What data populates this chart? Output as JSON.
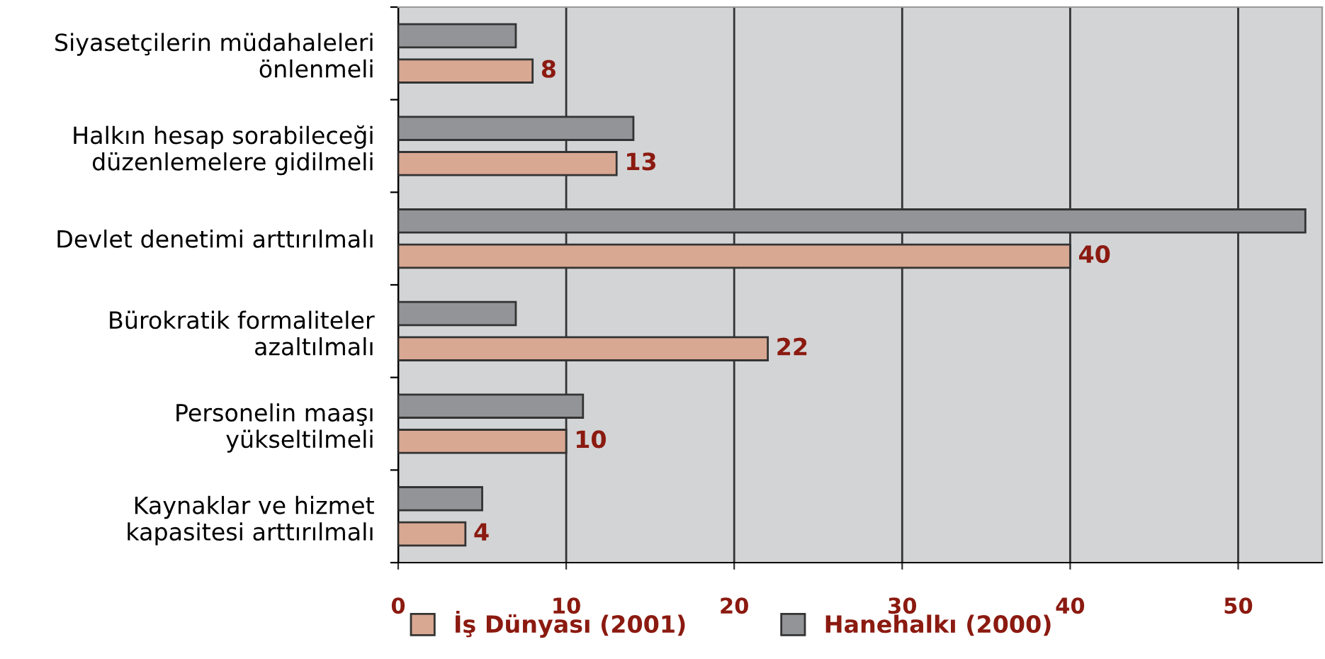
{
  "chart_data": {
    "type": "bar",
    "orientation": "horizontal",
    "categories": [
      "Siyasetçilerin müdahaleleri\nönlenmeli",
      "Halkın hesap sorabileceği\ndüzenlemelere gidilmeli",
      "Devlet denetimi arttırılmalı",
      "Bürokratik formaliteler\nazaltılmalı",
      "Personelin maaşı\nyükseltilmeli",
      "Kaynaklar ve hizmet\nkapasitesi arttırılmalı"
    ],
    "series": [
      {
        "name": "Hanehalkı (2000)",
        "color": "#939498",
        "values": [
          7,
          14,
          54,
          7,
          11,
          5
        ]
      },
      {
        "name": "İş Dünyası (2001)",
        "color": "#d9a892",
        "values": [
          8,
          13,
          40,
          22,
          10,
          4
        ],
        "value_labels": [
          "8",
          "13",
          "40",
          "22",
          "10",
          "4"
        ]
      }
    ],
    "xlim": [
      0,
      55
    ],
    "xticks": [
      0,
      10,
      20,
      30,
      40,
      50
    ],
    "grid": "x",
    "legend": "bottom left"
  }
}
